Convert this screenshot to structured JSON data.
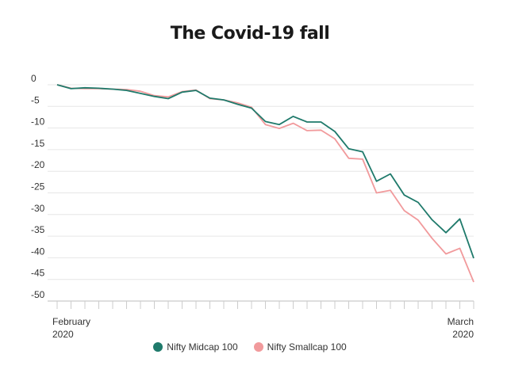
{
  "chart_data": {
    "type": "line",
    "title": "The Covid-19 fall",
    "xlabel": "",
    "ylabel": "",
    "x_labels": {
      "start": [
        "February",
        "2020"
      ],
      "end": [
        "March",
        "2020"
      ]
    },
    "ylim": [
      -50,
      0
    ],
    "yticks": [
      0,
      -5,
      -10,
      -15,
      -20,
      -25,
      -30,
      -35,
      -40,
      -45,
      -50
    ],
    "grid": true,
    "legend_position": "bottom",
    "series": [
      {
        "name": "Nifty Midcap 100",
        "color": "#1f7a6b",
        "values": [
          0,
          -0.9,
          -0.7,
          -0.8,
          -1.0,
          -1.3,
          -2.0,
          -2.7,
          -3.2,
          -1.7,
          -1.3,
          -3.1,
          -3.5,
          -4.5,
          -5.4,
          -8.5,
          -9.2,
          -7.3,
          -8.6,
          -8.6,
          -10.8,
          -14.8,
          -15.5,
          -22.3,
          -20.6,
          -25.5,
          -27.2,
          -31.2,
          -34.2,
          -31.0,
          -40.1
        ]
      },
      {
        "name": "Nifty Smallcap 100",
        "color": "#f19a9c",
        "values": [
          0,
          -0.8,
          -0.9,
          -0.9,
          -1.0,
          -1.1,
          -1.5,
          -2.5,
          -2.8,
          -1.6,
          -1.2,
          -3.2,
          -3.5,
          -4.2,
          -5.2,
          -9.2,
          -10.1,
          -8.9,
          -10.6,
          -10.5,
          -12.5,
          -17.0,
          -17.2,
          -25.0,
          -24.4,
          -29.1,
          -31.3,
          -35.5,
          -39.1,
          -37.8,
          -45.6
        ]
      }
    ]
  }
}
